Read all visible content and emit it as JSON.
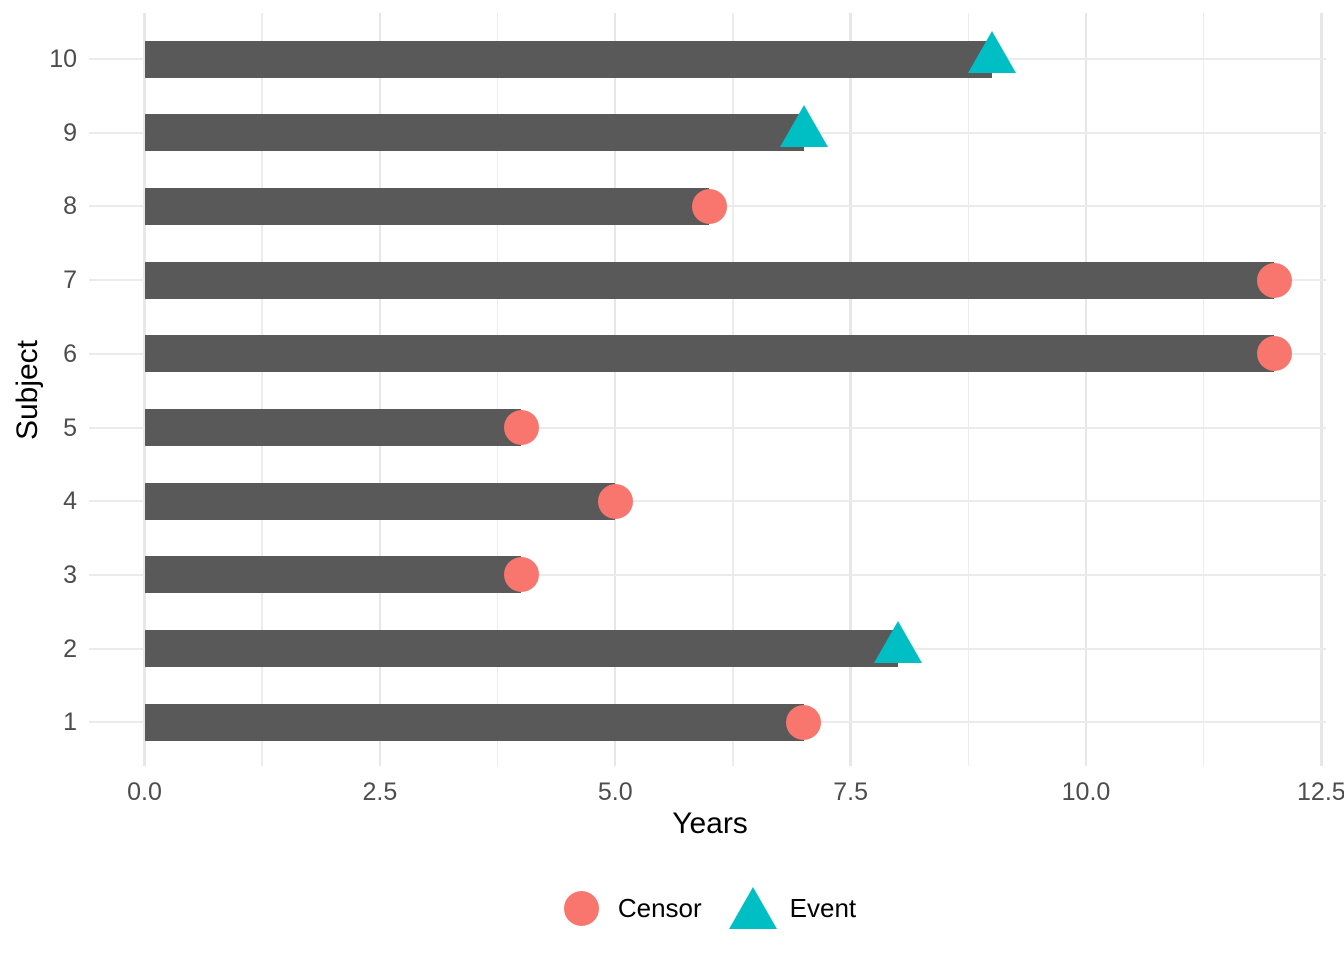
{
  "chart_data": {
    "type": "bar",
    "orientation": "horizontal",
    "title": "",
    "xlabel": "Years",
    "ylabel": "Subject",
    "xlim": [
      0,
      12.5
    ],
    "grid": "x major+minor, y major; light gray on white",
    "x_major_ticks": [
      {
        "value": 0,
        "label": "0.0"
      },
      {
        "value": 2.5,
        "label": "2.5"
      },
      {
        "value": 5,
        "label": "5.0"
      },
      {
        "value": 7.5,
        "label": "7.5"
      },
      {
        "value": 10,
        "label": "10.0"
      },
      {
        "value": 12.5,
        "label": "12.5"
      }
    ],
    "x_minor_tick_values": [
      1.25,
      3.75,
      6.25,
      8.75,
      11.25
    ],
    "subjects": [
      {
        "subject": "10",
        "years": 9,
        "status": "Event"
      },
      {
        "subject": "9",
        "years": 7,
        "status": "Event"
      },
      {
        "subject": "8",
        "years": 6,
        "status": "Censor"
      },
      {
        "subject": "7",
        "years": 12,
        "status": "Censor"
      },
      {
        "subject": "6",
        "years": 12,
        "status": "Censor"
      },
      {
        "subject": "5",
        "years": 4,
        "status": "Censor"
      },
      {
        "subject": "4",
        "years": 5,
        "status": "Censor"
      },
      {
        "subject": "3",
        "years": 4,
        "status": "Censor"
      },
      {
        "subject": "2",
        "years": 8,
        "status": "Event"
      },
      {
        "subject": "1",
        "years": 7,
        "status": "Censor"
      }
    ],
    "legend": {
      "position": "bottom",
      "items": [
        {
          "label": "Censor",
          "marker": "circle",
          "color": "#F8766D"
        },
        {
          "label": "Event",
          "marker": "triangle",
          "color": "#00BFC4"
        }
      ]
    },
    "colors": {
      "bar": "#595959",
      "censor": "#F8766D",
      "event": "#00BFC4",
      "grid": "#EBEBEB",
      "axis_text": "#4D4D4D",
      "axis_title": "#000000"
    }
  }
}
